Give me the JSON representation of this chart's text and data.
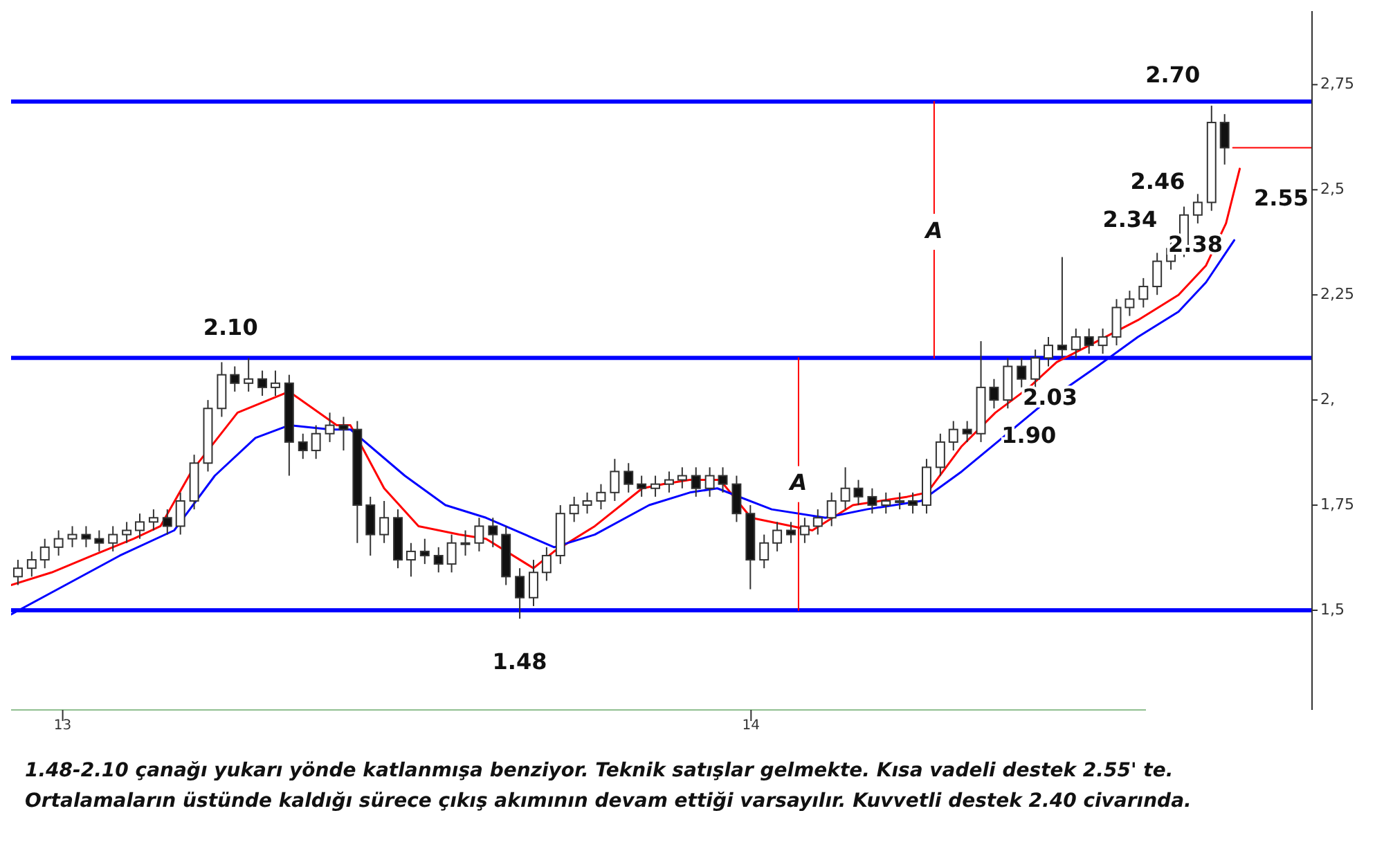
{
  "chart_data": {
    "type": "candlestick",
    "x": [
      2012.935,
      2012.955,
      2012.974,
      2012.994,
      2013.014,
      2013.034,
      2013.053,
      2013.073,
      2013.093,
      2013.112,
      2013.132,
      2013.152,
      2013.171,
      2013.191,
      2013.211,
      2013.231,
      2013.25,
      2013.27,
      2013.29,
      2013.309,
      2013.329,
      2013.349,
      2013.368,
      2013.388,
      2013.408,
      2013.428,
      2013.447,
      2013.467,
      2013.487,
      2013.506,
      2013.526,
      2013.546,
      2013.565,
      2013.585,
      2013.605,
      2013.625,
      2013.644,
      2013.664,
      2013.684,
      2013.703,
      2013.723,
      2013.743,
      2013.762,
      2013.782,
      2013.802,
      2013.822,
      2013.841,
      2013.861,
      2013.881,
      2013.9,
      2013.92,
      2013.94,
      2013.959,
      2013.979,
      2013.999,
      2014.019,
      2014.038,
      2014.058,
      2014.078,
      2014.097,
      2014.117,
      2014.137,
      2014.156,
      2014.176,
      2014.196,
      2014.216,
      2014.235,
      2014.255,
      2014.275,
      2014.294,
      2014.314,
      2014.334,
      2014.353,
      2014.373,
      2014.393,
      2014.413,
      2014.432,
      2014.452,
      2014.472,
      2014.491,
      2014.511,
      2014.531,
      2014.55,
      2014.57,
      2014.59,
      2014.61,
      2014.629,
      2014.649,
      2014.669,
      2014.688
    ],
    "ohlc": [
      [
        1.58,
        1.62,
        1.56,
        1.6
      ],
      [
        1.6,
        1.64,
        1.58,
        1.62
      ],
      [
        1.62,
        1.67,
        1.6,
        1.65
      ],
      [
        1.65,
        1.69,
        1.63,
        1.67
      ],
      [
        1.67,
        1.7,
        1.65,
        1.68
      ],
      [
        1.68,
        1.7,
        1.65,
        1.67
      ],
      [
        1.67,
        1.69,
        1.64,
        1.66
      ],
      [
        1.66,
        1.7,
        1.64,
        1.68
      ],
      [
        1.68,
        1.71,
        1.66,
        1.69
      ],
      [
        1.69,
        1.73,
        1.67,
        1.71
      ],
      [
        1.71,
        1.74,
        1.69,
        1.72
      ],
      [
        1.72,
        1.74,
        1.68,
        1.7
      ],
      [
        1.7,
        1.78,
        1.68,
        1.76
      ],
      [
        1.76,
        1.87,
        1.74,
        1.85
      ],
      [
        1.85,
        2.0,
        1.83,
        1.98
      ],
      [
        1.98,
        2.09,
        1.96,
        2.06
      ],
      [
        2.06,
        2.08,
        2.02,
        2.04
      ],
      [
        2.04,
        2.1,
        2.02,
        2.05
      ],
      [
        2.05,
        2.07,
        2.01,
        2.03
      ],
      [
        2.03,
        2.07,
        2.01,
        2.04
      ],
      [
        2.04,
        2.06,
        1.82,
        1.9
      ],
      [
        1.9,
        1.92,
        1.86,
        1.88
      ],
      [
        1.88,
        1.94,
        1.86,
        1.92
      ],
      [
        1.92,
        1.97,
        1.9,
        1.94
      ],
      [
        1.94,
        1.96,
        1.88,
        1.93
      ],
      [
        1.93,
        1.95,
        1.66,
        1.75
      ],
      [
        1.75,
        1.77,
        1.63,
        1.68
      ],
      [
        1.68,
        1.76,
        1.66,
        1.72
      ],
      [
        1.72,
        1.74,
        1.6,
        1.62
      ],
      [
        1.62,
        1.66,
        1.58,
        1.64
      ],
      [
        1.64,
        1.67,
        1.61,
        1.63
      ],
      [
        1.63,
        1.65,
        1.59,
        1.61
      ],
      [
        1.61,
        1.68,
        1.59,
        1.66
      ],
      [
        1.66,
        1.69,
        1.63,
        1.66
      ],
      [
        1.66,
        1.72,
        1.64,
        1.7
      ],
      [
        1.7,
        1.72,
        1.65,
        1.68
      ],
      [
        1.68,
        1.7,
        1.56,
        1.58
      ],
      [
        1.58,
        1.6,
        1.48,
        1.53
      ],
      [
        1.53,
        1.62,
        1.51,
        1.59
      ],
      [
        1.59,
        1.65,
        1.57,
        1.63
      ],
      [
        1.63,
        1.75,
        1.61,
        1.73
      ],
      [
        1.73,
        1.77,
        1.71,
        1.75
      ],
      [
        1.75,
        1.78,
        1.73,
        1.76
      ],
      [
        1.76,
        1.8,
        1.74,
        1.78
      ],
      [
        1.78,
        1.86,
        1.76,
        1.83
      ],
      [
        1.83,
        1.85,
        1.78,
        1.8
      ],
      [
        1.8,
        1.82,
        1.77,
        1.79
      ],
      [
        1.79,
        1.82,
        1.77,
        1.8
      ],
      [
        1.8,
        1.83,
        1.78,
        1.81
      ],
      [
        1.81,
        1.84,
        1.79,
        1.82
      ],
      [
        1.82,
        1.84,
        1.77,
        1.79
      ],
      [
        1.79,
        1.84,
        1.77,
        1.82
      ],
      [
        1.82,
        1.84,
        1.78,
        1.8
      ],
      [
        1.8,
        1.82,
        1.71,
        1.73
      ],
      [
        1.73,
        1.75,
        1.55,
        1.62
      ],
      [
        1.62,
        1.68,
        1.6,
        1.66
      ],
      [
        1.66,
        1.71,
        1.64,
        1.69
      ],
      [
        1.69,
        1.71,
        1.66,
        1.68
      ],
      [
        1.68,
        1.72,
        1.66,
        1.7
      ],
      [
        1.7,
        1.74,
        1.68,
        1.72
      ],
      [
        1.72,
        1.78,
        1.7,
        1.76
      ],
      [
        1.76,
        1.84,
        1.74,
        1.79
      ],
      [
        1.79,
        1.81,
        1.75,
        1.77
      ],
      [
        1.77,
        1.79,
        1.73,
        1.75
      ],
      [
        1.75,
        1.78,
        1.73,
        1.76
      ],
      [
        1.76,
        1.78,
        1.74,
        1.76
      ],
      [
        1.76,
        1.78,
        1.73,
        1.75
      ],
      [
        1.75,
        1.86,
        1.73,
        1.84
      ],
      [
        1.84,
        1.92,
        1.82,
        1.9
      ],
      [
        1.9,
        1.95,
        1.88,
        1.93
      ],
      [
        1.93,
        1.95,
        1.9,
        1.92
      ],
      [
        1.92,
        2.14,
        1.9,
        2.03
      ],
      [
        2.03,
        2.05,
        1.98,
        2.0
      ],
      [
        2.0,
        2.1,
        1.98,
        2.08
      ],
      [
        2.08,
        2.1,
        2.03,
        2.05
      ],
      [
        2.05,
        2.12,
        2.03,
        2.1
      ],
      [
        2.1,
        2.15,
        2.08,
        2.13
      ],
      [
        2.13,
        2.34,
        2.1,
        2.12
      ],
      [
        2.12,
        2.17,
        2.1,
        2.15
      ],
      [
        2.15,
        2.17,
        2.11,
        2.13
      ],
      [
        2.13,
        2.17,
        2.11,
        2.15
      ],
      [
        2.15,
        2.24,
        2.13,
        2.22
      ],
      [
        2.22,
        2.26,
        2.2,
        2.24
      ],
      [
        2.24,
        2.29,
        2.22,
        2.27
      ],
      [
        2.27,
        2.35,
        2.25,
        2.33
      ],
      [
        2.33,
        2.38,
        2.31,
        2.36
      ],
      [
        2.36,
        2.46,
        2.34,
        2.44
      ],
      [
        2.44,
        2.49,
        2.42,
        2.47
      ],
      [
        2.47,
        2.7,
        2.45,
        2.66
      ],
      [
        2.66,
        2.68,
        2.56,
        2.6
      ]
    ],
    "series": [
      {
        "type": "line",
        "color": "#ff0000",
        "x": [
          2012.925,
          2012.984,
          2013.043,
          2013.103,
          2013.142,
          2013.187,
          2013.254,
          2013.329,
          2013.398,
          2013.418,
          2013.467,
          2013.517,
          2013.576,
          2013.615,
          2013.684,
          2013.714,
          2013.773,
          2013.842,
          2013.872,
          2013.911,
          2013.955,
          2014.0,
          2014.089,
          2014.148,
          2014.227,
          2014.256,
          2014.306,
          2014.355,
          2014.404,
          2014.444,
          2014.503,
          2014.562,
          2014.621,
          2014.661,
          2014.69,
          2014.71
        ],
        "values": [
          1.56,
          1.59,
          1.63,
          1.67,
          1.7,
          1.83,
          1.97,
          2.02,
          1.94,
          1.94,
          1.79,
          1.7,
          1.68,
          1.67,
          1.6,
          1.64,
          1.7,
          1.79,
          1.8,
          1.81,
          1.81,
          1.72,
          1.69,
          1.75,
          1.77,
          1.78,
          1.89,
          1.97,
          2.03,
          2.09,
          2.14,
          2.19,
          2.25,
          2.32,
          2.42,
          2.55
        ]
      },
      {
        "type": "line",
        "color": "#0000ff",
        "x": [
          2012.925,
          2013.004,
          2013.083,
          2013.162,
          2013.221,
          2013.28,
          2013.329,
          2013.389,
          2013.418,
          2013.497,
          2013.556,
          2013.615,
          2013.714,
          2013.773,
          2013.852,
          2013.911,
          2013.951,
          2014.03,
          2014.108,
          2014.168,
          2014.247,
          2014.306,
          2014.365,
          2014.424,
          2014.503,
          2014.562,
          2014.621,
          2014.661,
          2014.702
        ],
        "values": [
          1.49,
          1.56,
          1.63,
          1.69,
          1.82,
          1.91,
          1.94,
          1.93,
          1.93,
          1.82,
          1.75,
          1.72,
          1.65,
          1.68,
          1.75,
          1.78,
          1.79,
          1.74,
          1.72,
          1.74,
          1.76,
          1.83,
          1.91,
          1.99,
          2.08,
          2.15,
          2.21,
          2.28,
          2.38
        ]
      },
      {
        "type": "line",
        "color": "#ff0000",
        "x": [
          2014.069,
          2014.069
        ],
        "values": [
          1.5,
          2.1
        ]
      },
      {
        "type": "line",
        "color": "#ff0000",
        "x": [
          2014.266,
          2014.266
        ],
        "values": [
          2.1,
          2.71
        ]
      },
      {
        "type": "line",
        "color": "#ff0000",
        "x": [
          2014.7,
          2014.815
        ],
        "values": [
          2.6,
          2.6
        ]
      }
    ],
    "ref_lines": [
      {
        "axis": "y",
        "value": 2.71,
        "color": "#0000ff"
      },
      {
        "axis": "y",
        "value": 2.1,
        "color": "#0000ff"
      },
      {
        "axis": "y",
        "value": 1.5,
        "color": "#0000ff"
      }
    ],
    "xlim": [
      2012.925,
      2014.815
    ],
    "xticks": [
      {
        "value": 2013,
        "label": "13"
      },
      {
        "value": 2014,
        "label": "14"
      }
    ],
    "ylim": [
      1.263,
      2.925
    ],
    "yticks": [
      {
        "value": 1.5,
        "label": "1,5"
      },
      {
        "value": 1.75,
        "label": "1,75"
      },
      {
        "value": 2,
        "label": "2,"
      },
      {
        "value": 2.25,
        "label": "2,25"
      },
      {
        "value": 2.5,
        "label": "2,5"
      },
      {
        "value": 2.75,
        "label": "2,75"
      }
    ],
    "annotations": [
      {
        "text": "2.10",
        "x": 2013.27,
        "y": 2.1
      },
      {
        "text": "1.48",
        "x": 2013.664,
        "y": 1.48
      },
      {
        "text": "2.70",
        "x": 2014.669,
        "y": 2.7
      },
      {
        "text": "2.46",
        "x": 2014.629,
        "y": 2.46
      },
      {
        "text": "2.34",
        "x": 2014.452,
        "y": 2.34
      },
      {
        "text": "2.55",
        "x": 2014.71,
        "y": 2.55
      },
      {
        "text": "2.38",
        "x": 2014.702,
        "y": 2.38
      },
      {
        "text": "2.03",
        "x": 2014.334,
        "y": 2.03
      },
      {
        "text": "1.90",
        "x": 2014.275,
        "y": 1.9
      },
      {
        "text": "A",
        "x": 2014.069,
        "y": 1.8
      },
      {
        "text": "A",
        "x": 2014.266,
        "y": 2.4
      },
      "1.48-2.10 çanağı yukarı yönde katlanmışa benziyor. Teknik satışlar gelmekte. Kısa vadeli destek 2.55' te. Ortalamaların üstünde kaldığı sürece çıkış akımının devam ettiği varsayılır. Kuvvetli destek 2.40 civarında."
    ],
    "grid": false
  }
}
